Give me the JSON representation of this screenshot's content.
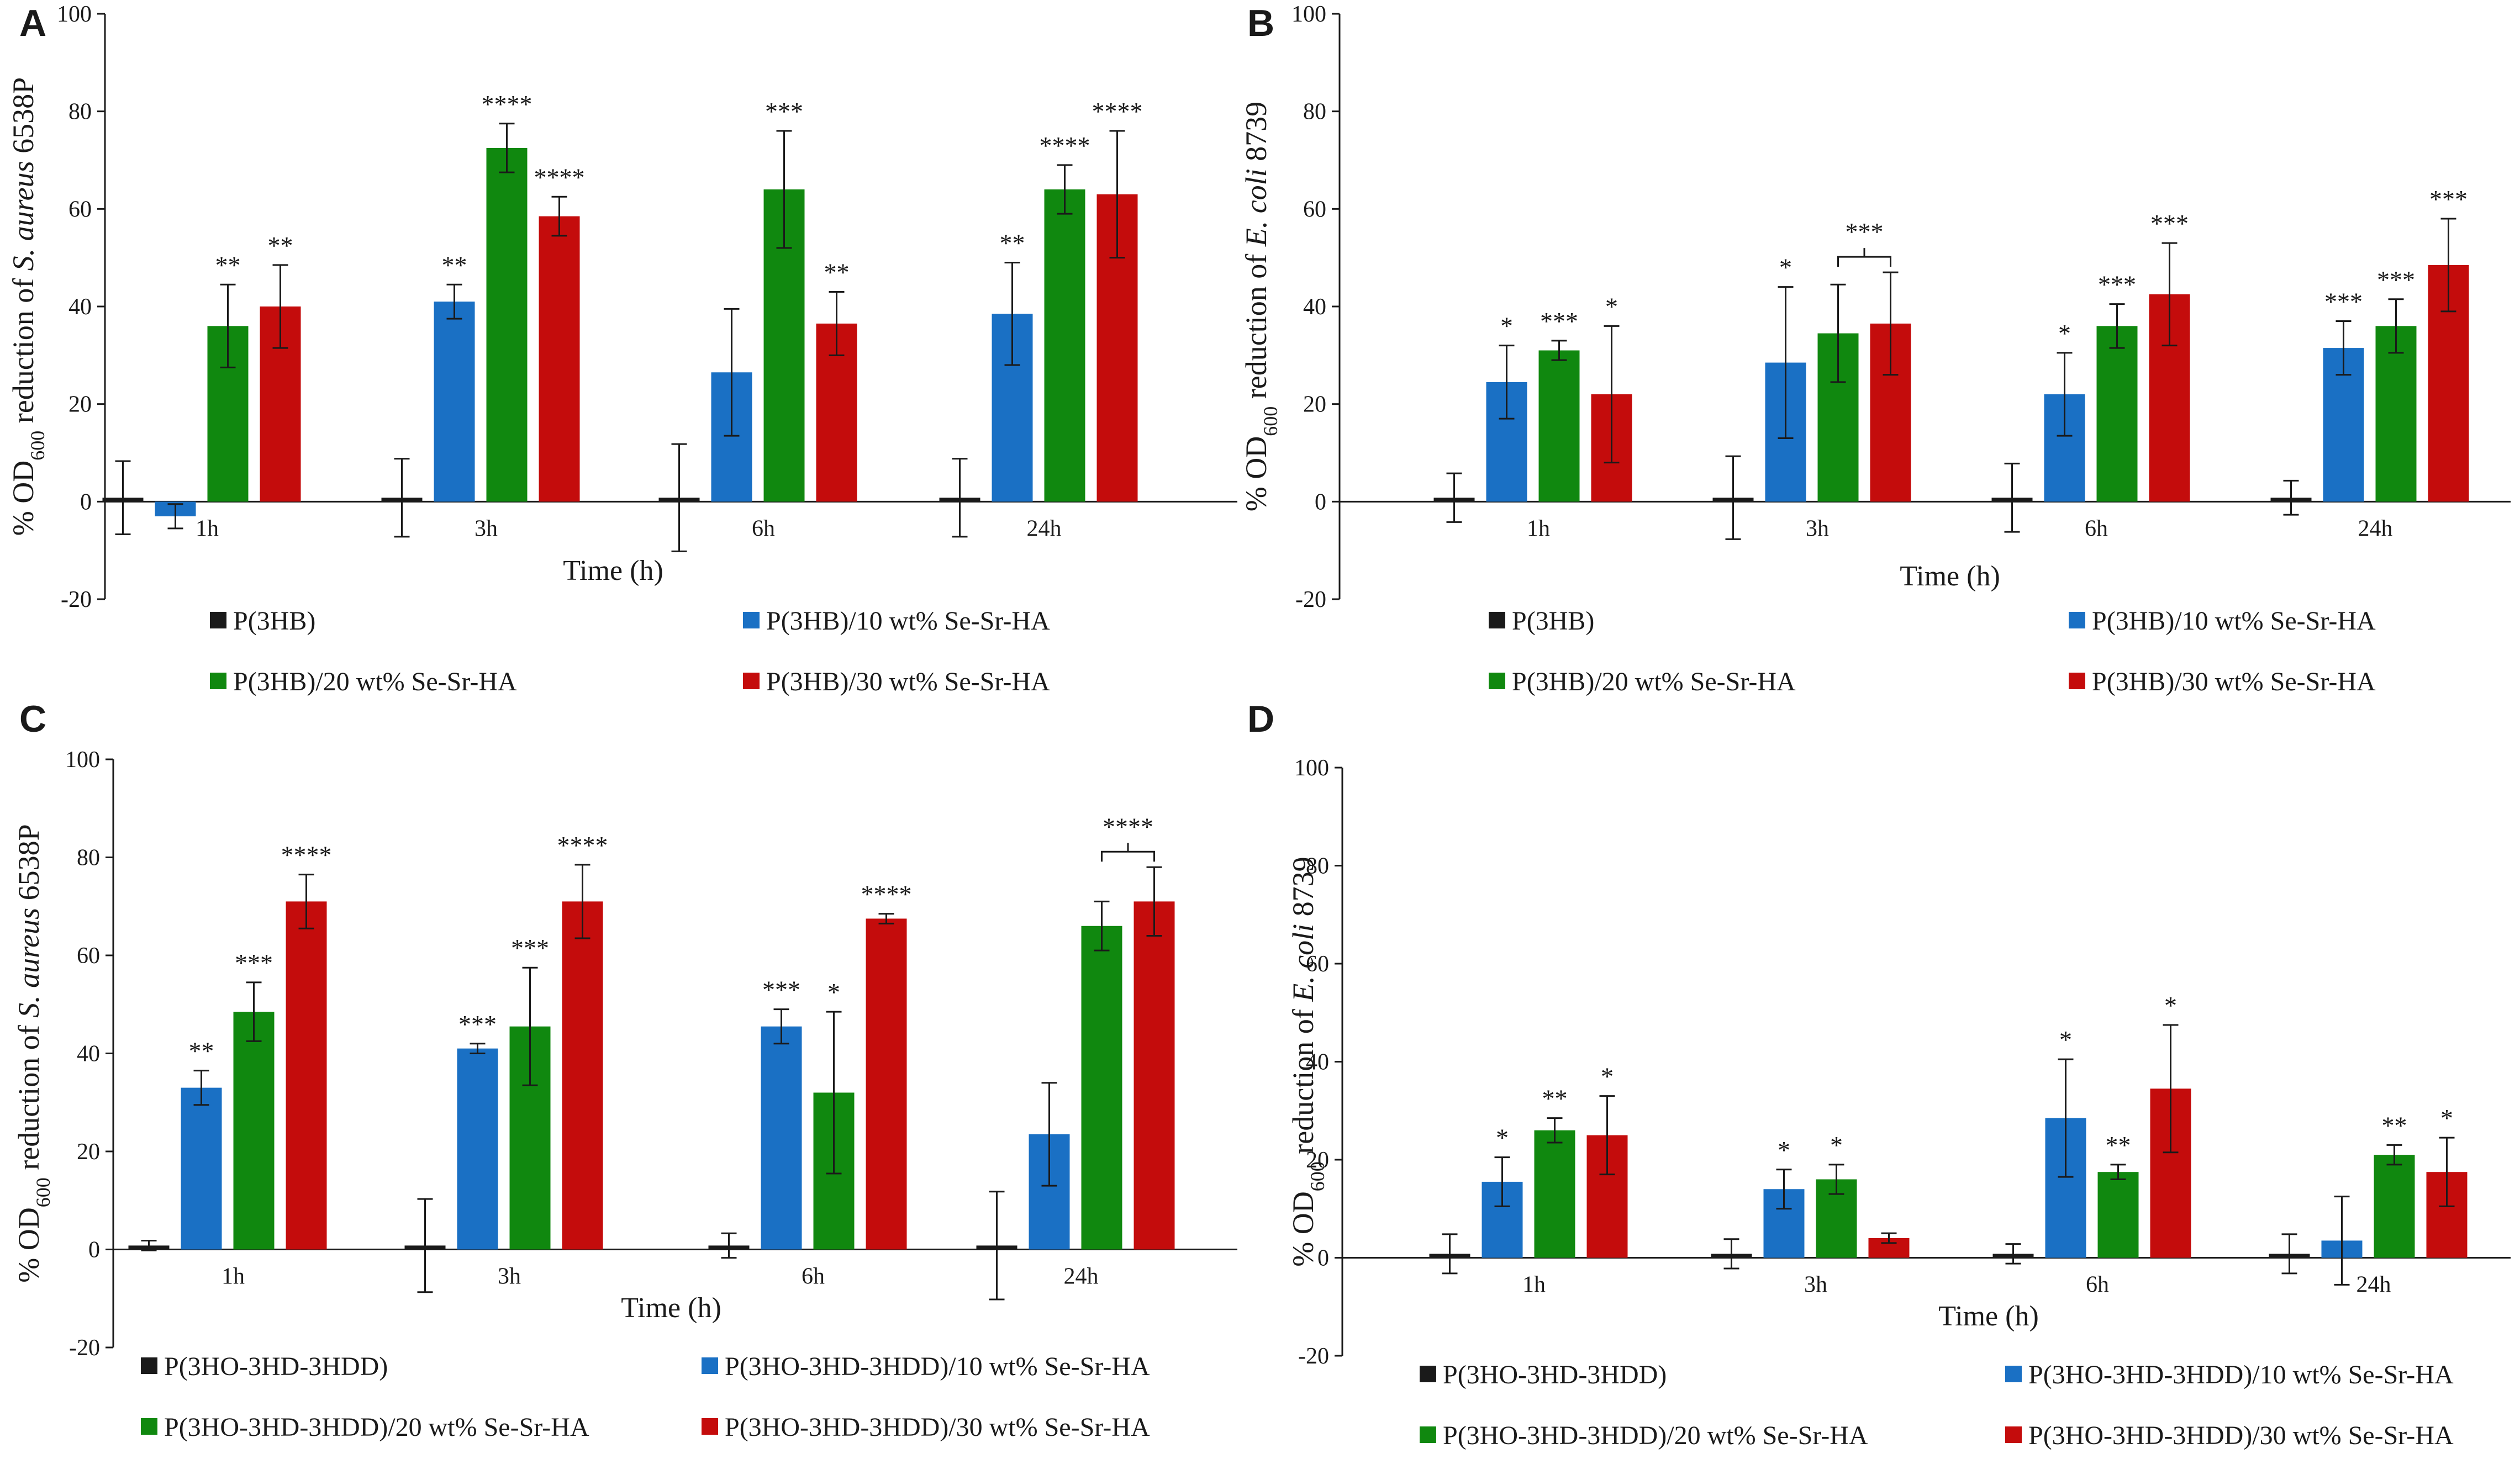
{
  "colors": {
    "black": "#1a1a1a",
    "blue": "#1a70c4",
    "green": "#10880f",
    "red": "#c40c0c"
  },
  "chart_data": [
    {
      "panel": "A",
      "type": "bar",
      "title": "",
      "categories": [
        "1h",
        "3h",
        "6h",
        "24h"
      ],
      "xlabel": "Time (h)",
      "ylabel": {
        "pre": "% OD",
        "sub": "600",
        "mid": " reduction of ",
        "italic": "S. aureus",
        "post": " 6538P"
      },
      "ylim": [
        -20,
        100
      ],
      "yticks": [
        -20,
        0,
        20,
        40,
        60,
        80,
        100
      ],
      "series": [
        {
          "name": "P(3HB)",
          "color": "black",
          "values": [
            0.8,
            0.8,
            0.8,
            0.8
          ],
          "errors": [
            7.5,
            8,
            11,
            8
          ],
          "sig": [
            "",
            "",
            "",
            ""
          ]
        },
        {
          "name": "P(3HB)/10 wt% Se-Sr-HA",
          "color": "blue",
          "values": [
            -3,
            41,
            26.5,
            38.5
          ],
          "errors": [
            2.5,
            3.5,
            13,
            10.5
          ],
          "sig": [
            "",
            "**",
            "",
            "**"
          ]
        },
        {
          "name": "P(3HB)/20 wt% Se-Sr-HA",
          "color": "green",
          "values": [
            36,
            72.5,
            64,
            64
          ],
          "errors": [
            8.5,
            5,
            12,
            5
          ],
          "sig": [
            "**",
            "****",
            "***",
            "****"
          ]
        },
        {
          "name": "P(3HB)/30 wt% Se-Sr-HA",
          "color": "red",
          "values": [
            40,
            58.5,
            36.5,
            63
          ],
          "errors": [
            8.5,
            4,
            6.5,
            13
          ],
          "sig": [
            "**",
            "****",
            "**",
            "****"
          ]
        }
      ],
      "brackets": []
    },
    {
      "panel": "B",
      "type": "bar",
      "title": "",
      "categories": [
        "1h",
        "3h",
        "6h",
        "24h"
      ],
      "xlabel": "Time (h)",
      "ylabel": {
        "pre": "% OD",
        "sub": "600",
        "mid": " reduction of ",
        "italic": "E. coli",
        "post": " 8739"
      },
      "ylim": [
        -20,
        100
      ],
      "yticks": [
        -20,
        0,
        20,
        40,
        60,
        80,
        100
      ],
      "series": [
        {
          "name": "P(3HB)",
          "color": "black",
          "values": [
            0.8,
            0.8,
            0.8,
            0.8
          ],
          "errors": [
            5,
            8.5,
            7,
            3.5
          ],
          "sig": [
            "",
            "",
            "",
            ""
          ]
        },
        {
          "name": "P(3HB)/10 wt% Se-Sr-HA",
          "color": "blue",
          "values": [
            24.5,
            28.5,
            22,
            31.5
          ],
          "errors": [
            7.5,
            15.5,
            8.5,
            5.5
          ],
          "sig": [
            "*",
            "*",
            "*",
            "***"
          ]
        },
        {
          "name": "P(3HB)/20 wt% Se-Sr-HA",
          "color": "green",
          "values": [
            31,
            34.5,
            36,
            36
          ],
          "errors": [
            2,
            10,
            4.5,
            5.5
          ],
          "sig": [
            "***",
            "",
            "***",
            "***"
          ]
        },
        {
          "name": "P(3HB)/30 wt% Se-Sr-HA",
          "color": "red",
          "values": [
            22,
            36.5,
            42.5,
            48.5
          ],
          "errors": [
            14,
            10.5,
            10.5,
            9.5
          ],
          "sig": [
            "*",
            "",
            "***",
            "***"
          ]
        }
      ],
      "brackets": [
        {
          "category": 1,
          "from": 2,
          "to": 3,
          "label": "***"
        }
      ]
    },
    {
      "panel": "C",
      "type": "bar",
      "title": "",
      "categories": [
        "1h",
        "3h",
        "6h",
        "24h"
      ],
      "xlabel": "Time (h)",
      "ylabel": {
        "pre": "% OD",
        "sub": "600",
        "mid": " reduction of ",
        "italic": "S. aureus",
        "post": " 6538P"
      },
      "ylim": [
        -20,
        100
      ],
      "yticks": [
        -20,
        0,
        20,
        40,
        60,
        80,
        100
      ],
      "series": [
        {
          "name": "P(3HO-3HD-3HDD)",
          "color": "black",
          "values": [
            0.8,
            0.8,
            0.8,
            0.8
          ],
          "errors": [
            1,
            9.5,
            2.5,
            11
          ],
          "sig": [
            "",
            "",
            "",
            ""
          ]
        },
        {
          "name": "P(3HO-3HD-3HDD)/10 wt% Se-Sr-HA",
          "color": "blue",
          "values": [
            33,
            41,
            45.5,
            23.5
          ],
          "errors": [
            3.5,
            1,
            3.5,
            10.5
          ],
          "sig": [
            "**",
            "***",
            "***",
            ""
          ]
        },
        {
          "name": "P(3HO-3HD-3HDD)/20 wt% Se-Sr-HA",
          "color": "green",
          "values": [
            48.5,
            45.5,
            32,
            66
          ],
          "errors": [
            6,
            12,
            16.5,
            5
          ],
          "sig": [
            "***",
            "***",
            "*",
            ""
          ]
        },
        {
          "name": "P(3HO-3HD-3HDD)/30 wt% Se-Sr-HA",
          "color": "red",
          "values": [
            71,
            71,
            67.5,
            71
          ],
          "errors": [
            5.5,
            7.5,
            1,
            7
          ],
          "sig": [
            "****",
            "****",
            "****",
            ""
          ]
        }
      ],
      "brackets": [
        {
          "category": 3,
          "from": 2,
          "to": 3,
          "label": "****"
        }
      ]
    },
    {
      "panel": "D",
      "type": "bar",
      "title": "",
      "categories": [
        "1h",
        "3h",
        "6h",
        "24h"
      ],
      "xlabel": "Time (h)",
      "ylabel": {
        "pre": "% OD",
        "sub": "600",
        "mid": " reduction of ",
        "italic": "E. coli",
        "post": " 8739"
      },
      "ylim": [
        -20,
        100
      ],
      "yticks": [
        -20,
        0,
        20,
        40,
        60,
        80,
        100
      ],
      "series": [
        {
          "name": "P(3HO-3HD-3HDD)",
          "color": "black",
          "values": [
            0.8,
            0.8,
            0.8,
            0.8
          ],
          "errors": [
            4,
            3,
            2,
            4
          ],
          "sig": [
            "",
            "",
            "",
            ""
          ]
        },
        {
          "name": "P(3HO-3HD-3HDD)/10 wt% Se-Sr-HA",
          "color": "blue",
          "values": [
            15.5,
            14,
            28.5,
            3.5
          ],
          "errors": [
            5,
            4,
            12,
            9
          ],
          "sig": [
            "*",
            "*",
            "*",
            ""
          ]
        },
        {
          "name": "P(3HO-3HD-3HDD)/20 wt% Se-Sr-HA",
          "color": "green",
          "values": [
            26,
            16,
            17.5,
            21
          ],
          "errors": [
            2.5,
            3,
            1.5,
            2
          ],
          "sig": [
            "**",
            "*",
            "**",
            "**"
          ]
        },
        {
          "name": "P(3HO-3HD-3HDD)/30 wt% Se-Sr-HA",
          "color": "red",
          "values": [
            25,
            4,
            34.5,
            17.5
          ],
          "errors": [
            8,
            1,
            13,
            7
          ],
          "sig": [
            "*",
            "",
            "*",
            "*"
          ]
        }
      ],
      "brackets": []
    }
  ]
}
